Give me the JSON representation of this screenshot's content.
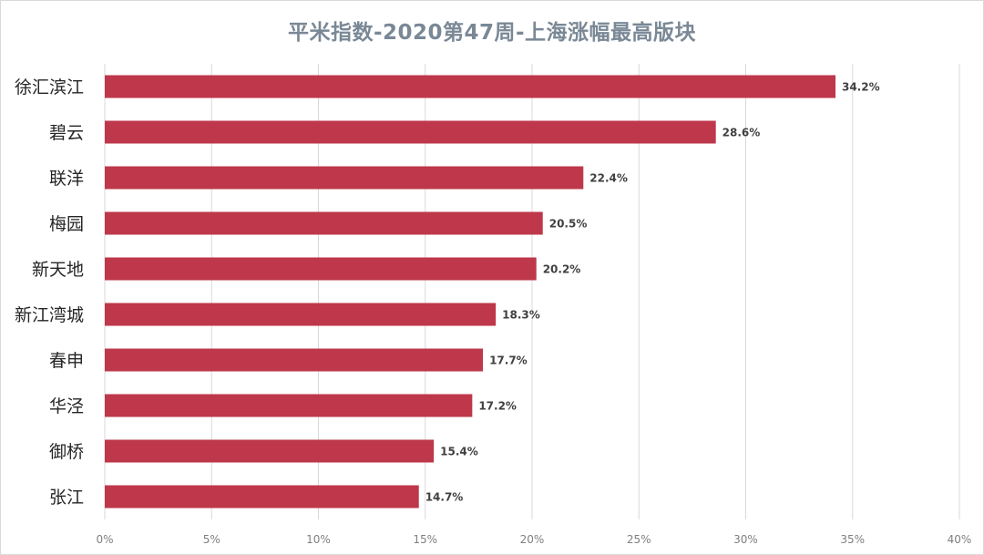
{
  "chart_data": {
    "type": "bar",
    "orientation": "horizontal",
    "title": "平米指数-2020第47周-上海涨幅最高版块",
    "categories": [
      "徐汇滨江",
      "碧云",
      "联洋",
      "梅园",
      "新天地",
      "新江湾城",
      "春申",
      "华泾",
      "御桥",
      "张江"
    ],
    "values": [
      34.2,
      28.6,
      22.4,
      20.5,
      20.2,
      18.3,
      17.7,
      17.2,
      15.4,
      14.7
    ],
    "value_labels": [
      "34.2%",
      "28.6%",
      "22.4%",
      "20.5%",
      "20.2%",
      "18.3%",
      "17.7%",
      "17.2%",
      "15.4%",
      "14.7%"
    ],
    "xlim": [
      0,
      40
    ],
    "xticks": [
      "0%",
      "5%",
      "10%",
      "15%",
      "20%",
      "25%",
      "30%",
      "35%",
      "40%"
    ],
    "xlabel": "",
    "ylabel": "",
    "grid": "vertical",
    "legend": "none",
    "bar_color": "#be374a"
  }
}
